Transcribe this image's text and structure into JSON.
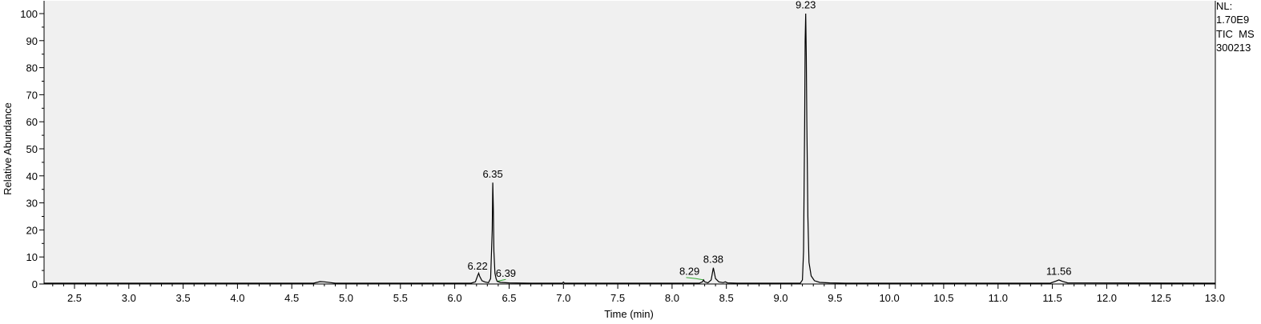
{
  "chart_data": {
    "type": "line",
    "xlabel": "Time (min)",
    "ylabel": "Relative Abundance",
    "xlim": [
      2.22,
      13.0
    ],
    "ylim": [
      0,
      100
    ],
    "x_ticks": [
      "2.5",
      "3.0",
      "3.5",
      "4.0",
      "4.5",
      "5.0",
      "5.5",
      "6.0",
      "6.5",
      "7.0",
      "7.5",
      "8.0",
      "8.5",
      "9.0",
      "9.5",
      "10.0",
      "10.5",
      "11.0",
      "11.5",
      "12.0",
      "12.5",
      "13.0"
    ],
    "y_ticks": [
      "0",
      "10",
      "20",
      "30",
      "40",
      "50",
      "60",
      "70",
      "80",
      "90",
      "100"
    ],
    "grid": false,
    "plot_background": "#f0f0f0",
    "trace_color": "#000000",
    "integration_color": "#33aa33",
    "info": [
      "NL:",
      "1.70E9",
      "TIC  MS",
      "300213"
    ],
    "peaks": [
      {
        "label": "6.22",
        "rt": 6.22,
        "height": 4.0,
        "label_x": 6.21,
        "label_y": 4.5
      },
      {
        "label": "6.35",
        "rt": 6.35,
        "height": 37.5,
        "label_x": 6.35,
        "label_y": 38.5
      },
      {
        "label": "6.39",
        "rt": 6.39,
        "height": 1.0,
        "label_x": 6.47,
        "label_y": 1.8
      },
      {
        "label": "8.29",
        "rt": 8.29,
        "height": 1.5,
        "label_x": 8.16,
        "label_y": 2.5
      },
      {
        "label": "8.38",
        "rt": 8.38,
        "height": 6.0,
        "label_x": 8.38,
        "label_y": 7.0
      },
      {
        "label": "9.23",
        "rt": 9.23,
        "height": 100.0,
        "label_x": 9.23,
        "label_y": 101.0
      },
      {
        "label": "11.56",
        "rt": 11.56,
        "height": 1.5,
        "label_x": 11.56,
        "label_y": 2.5
      }
    ],
    "trace": [
      [
        2.22,
        0.3
      ],
      [
        4.7,
        0.3
      ],
      [
        4.76,
        0.9
      ],
      [
        4.8,
        0.8
      ],
      [
        4.86,
        0.5
      ],
      [
        4.9,
        0.3
      ],
      [
        6.15,
        0.3
      ],
      [
        6.19,
        0.8
      ],
      [
        6.21,
        3.0
      ],
      [
        6.22,
        4.0
      ],
      [
        6.23,
        2.8
      ],
      [
        6.25,
        1.2
      ],
      [
        6.28,
        0.7
      ],
      [
        6.31,
        0.5
      ],
      [
        6.33,
        2.0
      ],
      [
        6.345,
        20.0
      ],
      [
        6.35,
        37.5
      ],
      [
        6.355,
        28.0
      ],
      [
        6.36,
        12.0
      ],
      [
        6.37,
        4.0
      ],
      [
        6.38,
        2.0
      ],
      [
        6.39,
        1.0
      ],
      [
        6.42,
        0.6
      ],
      [
        6.5,
        0.4
      ],
      [
        6.7,
        0.3
      ],
      [
        6.99,
        0.3
      ],
      [
        7.0,
        0.7
      ],
      [
        7.01,
        0.3
      ],
      [
        8.25,
        0.3
      ],
      [
        8.28,
        0.8
      ],
      [
        8.29,
        1.5
      ],
      [
        8.3,
        0.8
      ],
      [
        8.33,
        0.4
      ],
      [
        8.36,
        1.5
      ],
      [
        8.375,
        5.0
      ],
      [
        8.38,
        6.0
      ],
      [
        8.385,
        5.0
      ],
      [
        8.4,
        2.0
      ],
      [
        8.43,
        0.8
      ],
      [
        8.47,
        0.5
      ],
      [
        8.49,
        0.8
      ],
      [
        8.51,
        0.4
      ],
      [
        8.6,
        0.3
      ],
      [
        9.18,
        0.3
      ],
      [
        9.2,
        1.5
      ],
      [
        9.21,
        12.0
      ],
      [
        9.22,
        60.0
      ],
      [
        9.225,
        90.0
      ],
      [
        9.23,
        100.0
      ],
      [
        9.235,
        85.0
      ],
      [
        9.24,
        60.0
      ],
      [
        9.25,
        25.0
      ],
      [
        9.26,
        8.0
      ],
      [
        9.28,
        3.0
      ],
      [
        9.31,
        1.2
      ],
      [
        9.36,
        0.6
      ],
      [
        9.45,
        0.4
      ],
      [
        9.6,
        0.3
      ],
      [
        11.48,
        0.3
      ],
      [
        11.53,
        1.0
      ],
      [
        11.56,
        1.5
      ],
      [
        11.59,
        1.0
      ],
      [
        11.64,
        0.4
      ],
      [
        13.0,
        0.3
      ]
    ],
    "integrations": [
      [
        [
          6.39,
          1.0
        ],
        [
          6.47,
          1.7
        ]
      ],
      [
        [
          8.13,
          2.4
        ],
        [
          8.22,
          2.0
        ],
        [
          8.29,
          1.5
        ]
      ]
    ]
  }
}
